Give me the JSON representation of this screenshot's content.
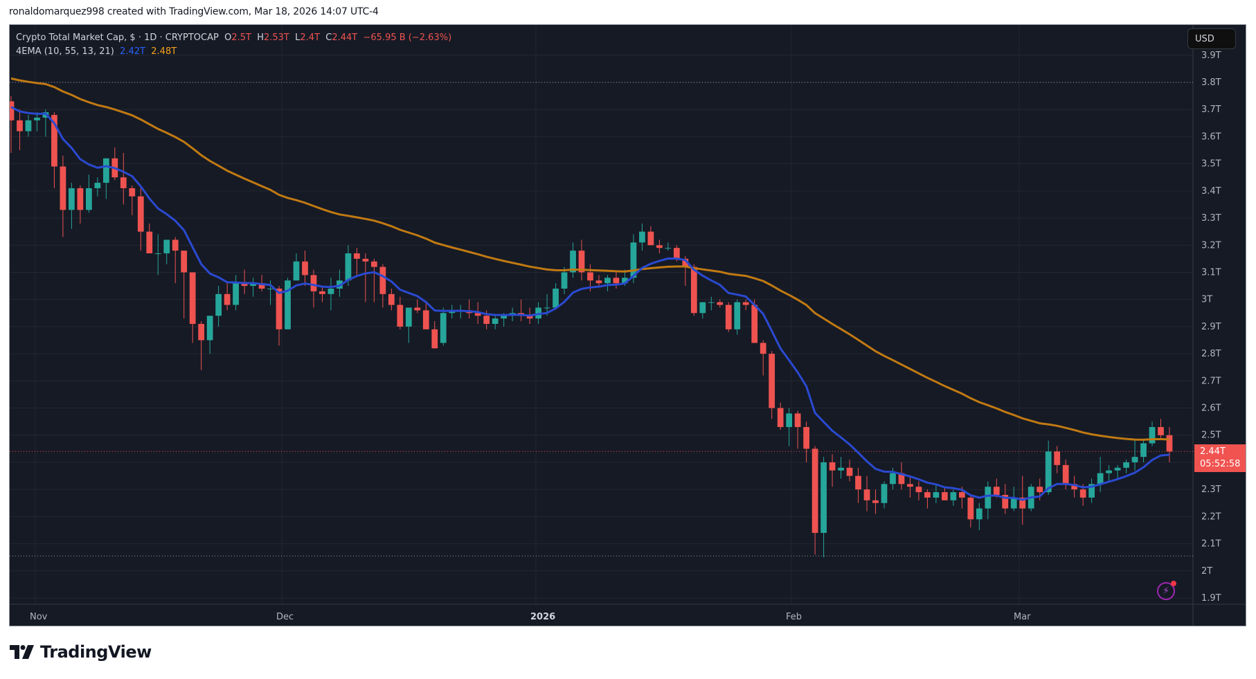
{
  "caption": "ronaldomarquez998 created with TradingView.com, Mar 18, 2026 14:07 UTC-4",
  "legend": {
    "symbol": "Crypto Total Market Cap, $ · 1D · CRYPTOCAP",
    "o_label": "O",
    "o_value": "2.5T",
    "h_label": "H",
    "h_value": "2.53T",
    "l_label": "L",
    "l_value": "2.4T",
    "c_label": "C",
    "c_value": "2.44T",
    "change": "−65.95 B (−2.63%)",
    "indicator": "4EMA (10, 55, 13, 21)",
    "ema_fast": "2.42T",
    "ema_slow": "2.48T"
  },
  "currency_button": "USD",
  "price_tag": {
    "price": "2.44T",
    "countdown": "05:52:58"
  },
  "branding": {
    "logo_text": "TradingView"
  },
  "colors": {
    "up": "#26a69a",
    "down": "#ef5350",
    "ema_fast": "#2a4ad1",
    "ema_slow": "#c17a12",
    "background": "#161a25",
    "grid": "#232733"
  },
  "chart_data": {
    "type": "candlestick",
    "title": "Crypto Total Market Cap, $ · 1D · CRYPTOCAP",
    "xlabel": "",
    "ylabel": "",
    "x_ticks": [
      "Nov",
      "Dec",
      "2026",
      "Feb",
      "Mar"
    ],
    "y_ticks": [
      "3.9T",
      "3.8T",
      "3.7T",
      "3.6T",
      "3.5T",
      "3.4T",
      "3.3T",
      "3.2T",
      "3.1T",
      "3T",
      "2.9T",
      "2.8T",
      "2.7T",
      "2.6T",
      "2.5T",
      "2.4T",
      "2.3T",
      "2.2T",
      "2.1T",
      "2T",
      "1.9T"
    ],
    "ylim": [
      1.88,
      3.93
    ],
    "grid": true,
    "reference_lines": [
      {
        "value": 3.8,
        "style": "dotted"
      },
      {
        "value": 2.055,
        "style": "dotted"
      },
      {
        "value": 2.44,
        "style": "dotted-red"
      }
    ],
    "candles": [
      [
        3.73,
        3.75,
        3.54,
        3.66
      ],
      [
        3.66,
        3.7,
        3.55,
        3.62
      ],
      [
        3.62,
        3.68,
        3.6,
        3.66
      ],
      [
        3.66,
        3.69,
        3.62,
        3.67
      ],
      [
        3.67,
        3.7,
        3.6,
        3.69
      ],
      [
        3.68,
        3.69,
        3.41,
        3.49
      ],
      [
        3.49,
        3.53,
        3.23,
        3.33
      ],
      [
        3.33,
        3.43,
        3.26,
        3.41
      ],
      [
        3.41,
        3.42,
        3.28,
        3.33
      ],
      [
        3.33,
        3.46,
        3.32,
        3.41
      ],
      [
        3.41,
        3.45,
        3.38,
        3.43
      ],
      [
        3.43,
        3.52,
        3.37,
        3.52
      ],
      [
        3.52,
        3.56,
        3.44,
        3.45
      ],
      [
        3.45,
        3.54,
        3.35,
        3.41
      ],
      [
        3.41,
        3.42,
        3.31,
        3.38
      ],
      [
        3.38,
        3.41,
        3.18,
        3.25
      ],
      [
        3.25,
        3.28,
        3.19,
        3.17
      ],
      [
        3.17,
        3.24,
        3.09,
        3.17
      ],
      [
        3.17,
        3.22,
        3.13,
        3.22
      ],
      [
        3.22,
        3.23,
        3.06,
        3.18
      ],
      [
        3.18,
        3.15,
        2.93,
        3.1
      ],
      [
        3.1,
        3.08,
        2.84,
        2.91
      ],
      [
        2.91,
        2.92,
        2.74,
        2.85
      ],
      [
        2.85,
        2.93,
        2.8,
        2.94
      ],
      [
        2.94,
        3.05,
        2.9,
        3.02
      ],
      [
        3.02,
        3.06,
        2.96,
        2.98
      ],
      [
        2.98,
        3.09,
        2.96,
        3.06
      ],
      [
        3.06,
        3.11,
        3.02,
        3.05
      ],
      [
        3.05,
        3.08,
        3.01,
        3.06
      ],
      [
        3.06,
        3.09,
        3.03,
        3.04
      ],
      [
        3.04,
        3.07,
        2.98,
        3.04
      ],
      [
        3.04,
        3.05,
        2.83,
        2.89
      ],
      [
        2.89,
        3.08,
        2.9,
        3.07
      ],
      [
        3.07,
        3.17,
        3.08,
        3.14
      ],
      [
        3.14,
        3.18,
        3.05,
        3.09
      ],
      [
        3.09,
        3.11,
        2.97,
        3.03
      ],
      [
        3.03,
        3.05,
        2.99,
        3.02
      ],
      [
        3.02,
        3.08,
        2.96,
        3.04
      ],
      [
        3.04,
        3.11,
        3.01,
        3.07
      ],
      [
        3.07,
        3.2,
        3.05,
        3.17
      ],
      [
        3.17,
        3.19,
        3.09,
        3.15
      ],
      [
        3.15,
        3.17,
        2.99,
        3.14
      ],
      [
        3.14,
        3.15,
        2.99,
        3.12
      ],
      [
        3.12,
        3.13,
        2.97,
        3.02
      ],
      [
        3.02,
        3.04,
        2.96,
        2.98
      ],
      [
        2.98,
        3.01,
        2.89,
        2.9
      ],
      [
        2.9,
        2.94,
        2.84,
        2.97
      ],
      [
        2.97,
        3.0,
        2.95,
        2.96
      ],
      [
        2.96,
        2.99,
        2.91,
        2.89
      ],
      [
        2.89,
        2.92,
        2.84,
        2.82
      ],
      [
        2.84,
        2.97,
        2.83,
        2.95
      ],
      [
        2.95,
        2.98,
        2.93,
        2.96
      ],
      [
        2.96,
        2.98,
        2.93,
        2.96
      ],
      [
        2.96,
        3.0,
        2.93,
        2.95
      ],
      [
        2.95,
        2.99,
        2.91,
        2.94
      ],
      [
        2.94,
        2.96,
        2.89,
        2.91
      ],
      [
        2.91,
        2.94,
        2.89,
        2.93
      ],
      [
        2.93,
        2.95,
        2.9,
        2.94
      ],
      [
        2.94,
        2.97,
        2.92,
        2.95
      ],
      [
        2.95,
        3.0,
        2.92,
        2.94
      ],
      [
        2.94,
        2.97,
        2.91,
        2.93
      ],
      [
        2.93,
        2.99,
        2.91,
        2.97
      ],
      [
        2.97,
        3.02,
        2.94,
        2.97
      ],
      [
        2.97,
        3.06,
        2.97,
        3.04
      ],
      [
        3.04,
        3.12,
        3.02,
        3.1
      ],
      [
        3.1,
        3.21,
        3.08,
        3.18
      ],
      [
        3.18,
        3.22,
        3.07,
        3.1
      ],
      [
        3.1,
        3.13,
        3.03,
        3.07
      ],
      [
        3.07,
        3.09,
        3.05,
        3.06
      ],
      [
        3.06,
        3.09,
        3.03,
        3.08
      ],
      [
        3.08,
        3.1,
        3.04,
        3.06
      ],
      [
        3.06,
        3.11,
        3.05,
        3.08
      ],
      [
        3.08,
        3.24,
        3.06,
        3.21
      ],
      [
        3.21,
        3.28,
        3.18,
        3.25
      ],
      [
        3.25,
        3.27,
        3.2,
        3.2
      ],
      [
        3.2,
        3.22,
        3.17,
        3.19
      ],
      [
        3.19,
        3.21,
        3.18,
        3.19
      ],
      [
        3.19,
        3.2,
        3.14,
        3.15
      ],
      [
        3.15,
        3.16,
        3.05,
        3.12
      ],
      [
        3.12,
        3.13,
        2.94,
        2.95
      ],
      [
        2.95,
        2.99,
        2.93,
        2.99
      ],
      [
        2.99,
        3.01,
        2.96,
        2.99
      ],
      [
        2.99,
        3.0,
        2.97,
        2.98
      ],
      [
        2.98,
        2.99,
        2.88,
        2.89
      ],
      [
        2.89,
        3.0,
        2.87,
        2.99
      ],
      [
        2.99,
        3.0,
        2.96,
        2.98
      ],
      [
        2.98,
        3.0,
        2.86,
        2.84
      ],
      [
        2.84,
        2.85,
        2.72,
        2.8
      ],
      [
        2.8,
        2.81,
        2.56,
        2.6
      ],
      [
        2.6,
        2.62,
        2.52,
        2.53
      ],
      [
        2.53,
        2.6,
        2.46,
        2.58
      ],
      [
        2.58,
        2.59,
        2.45,
        2.53
      ],
      [
        2.53,
        2.55,
        2.4,
        2.45
      ],
      [
        2.45,
        2.46,
        2.06,
        2.14
      ],
      [
        2.14,
        2.42,
        2.05,
        2.4
      ],
      [
        2.4,
        2.43,
        2.31,
        2.37
      ],
      [
        2.37,
        2.42,
        2.34,
        2.38
      ],
      [
        2.38,
        2.41,
        2.33,
        2.35
      ],
      [
        2.35,
        2.38,
        2.25,
        2.3
      ],
      [
        2.3,
        2.35,
        2.22,
        2.26
      ],
      [
        2.26,
        2.3,
        2.21,
        2.25
      ],
      [
        2.25,
        2.33,
        2.23,
        2.32
      ],
      [
        2.32,
        2.38,
        2.3,
        2.36
      ],
      [
        2.36,
        2.4,
        2.3,
        2.32
      ],
      [
        2.32,
        2.35,
        2.27,
        2.31
      ],
      [
        2.31,
        2.33,
        2.26,
        2.29
      ],
      [
        2.29,
        2.3,
        2.23,
        2.27
      ],
      [
        2.27,
        2.32,
        2.25,
        2.29
      ],
      [
        2.29,
        2.31,
        2.27,
        2.26
      ],
      [
        2.26,
        2.3,
        2.24,
        2.29
      ],
      [
        2.29,
        2.31,
        2.23,
        2.27
      ],
      [
        2.27,
        2.28,
        2.16,
        2.19
      ],
      [
        2.19,
        2.25,
        2.15,
        2.23
      ],
      [
        2.23,
        2.33,
        2.19,
        2.31
      ],
      [
        2.31,
        2.34,
        2.27,
        2.28
      ],
      [
        2.28,
        2.32,
        2.21,
        2.23
      ],
      [
        2.23,
        2.31,
        2.22,
        2.27
      ],
      [
        2.27,
        2.35,
        2.17,
        2.23
      ],
      [
        2.23,
        2.32,
        2.22,
        2.31
      ],
      [
        2.31,
        2.34,
        2.26,
        2.29
      ],
      [
        2.29,
        2.48,
        2.28,
        2.44
      ],
      [
        2.44,
        2.46,
        2.36,
        2.39
      ],
      [
        2.39,
        2.41,
        2.3,
        2.32
      ],
      [
        2.32,
        2.35,
        2.27,
        2.3
      ],
      [
        2.3,
        2.32,
        2.24,
        2.27
      ],
      [
        2.27,
        2.34,
        2.25,
        2.32
      ],
      [
        2.32,
        2.42,
        2.29,
        2.36
      ],
      [
        2.36,
        2.39,
        2.33,
        2.37
      ],
      [
        2.37,
        2.39,
        2.34,
        2.38
      ],
      [
        2.38,
        2.41,
        2.36,
        2.4
      ],
      [
        2.4,
        2.48,
        2.37,
        2.42
      ],
      [
        2.42,
        2.48,
        2.4,
        2.47
      ],
      [
        2.47,
        2.55,
        2.46,
        2.53
      ],
      [
        2.53,
        2.56,
        2.49,
        2.5
      ],
      [
        2.5,
        2.53,
        2.4,
        2.44
      ]
    ],
    "series": [
      {
        "name": "EMA 10",
        "color": "#2a4ad1",
        "last": 2.42
      },
      {
        "name": "EMA 55",
        "color": "#c17a12",
        "last": 2.48
      }
    ]
  }
}
